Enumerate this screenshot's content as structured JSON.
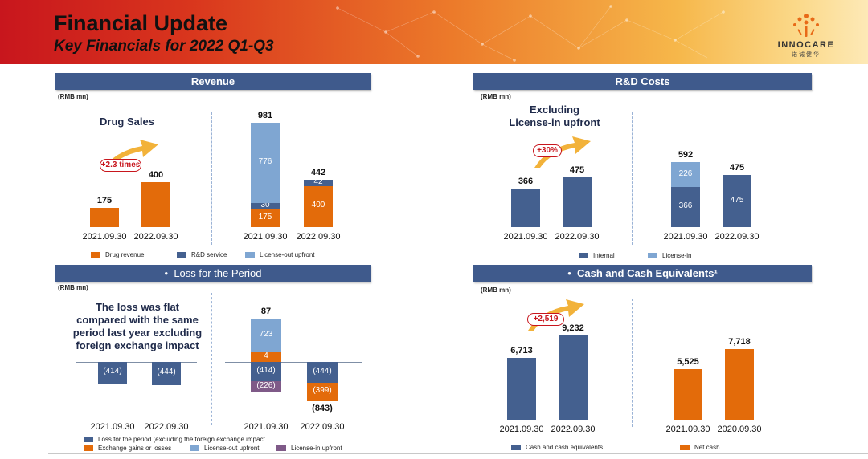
{
  "header": {
    "title": "Financial Update",
    "subtitle": "Key Financials for 2022 Q1-Q3"
  },
  "logo": {
    "word": "INNOCARE",
    "cn": "诺诚健华"
  },
  "colors": {
    "drug_revenue": "#e36b0a",
    "rd_service": "#44608f",
    "license_out": "#7fa6d2",
    "license_in_upfront": "#7f5a88",
    "panel": "#3f5a8c"
  },
  "panels": {
    "revenue": {
      "title": "Revenue",
      "unit": "(RMB mn)",
      "note": "Drug Sales",
      "growth": "+2.3 times"
    },
    "rd": {
      "title": "R&D Costs",
      "unit": "(RMB mn)",
      "note_lines": [
        "Excluding",
        "License-in upfront"
      ],
      "growth": "+30%"
    },
    "loss": {
      "title": "Loss for the Period",
      "unit": "(RMB mn)",
      "note_lines": [
        "The loss was flat",
        "compared with the same",
        "period last year excluding",
        "foreign exchange impact"
      ]
    },
    "cash": {
      "title": "Cash and Cash Equivalents¹",
      "unit": "(RMB mn)",
      "growth": "+2,519"
    }
  },
  "chart_data": [
    {
      "type": "bar",
      "id": "revenue_drug_sales",
      "categories": [
        "2021.09.30",
        "2022.09.30"
      ],
      "series": [
        {
          "name": "Drug revenue",
          "values": [
            175,
            400
          ]
        }
      ],
      "data_labels": [
        "175",
        "400"
      ]
    },
    {
      "type": "bar",
      "id": "revenue_total_stacked",
      "categories": [
        "2021.09.30",
        "2022.09.30"
      ],
      "series": [
        {
          "name": "Drug revenue",
          "values": [
            175,
            400
          ]
        },
        {
          "name": "R&D service",
          "values": [
            30,
            42
          ]
        },
        {
          "name": "License-out upfront",
          "values": [
            776,
            0
          ]
        }
      ],
      "totals": [
        981,
        442
      ],
      "total_labels": [
        "981",
        "442"
      ]
    },
    {
      "type": "bar",
      "id": "rd_internal",
      "categories": [
        "2021.09.30",
        "2022.09.30"
      ],
      "series": [
        {
          "name": "Internal",
          "values": [
            366,
            475
          ]
        }
      ],
      "data_labels": [
        "366",
        "475"
      ]
    },
    {
      "type": "bar",
      "id": "rd_total_stacked",
      "categories": [
        "2021.09.30",
        "2022.09.30"
      ],
      "series": [
        {
          "name": "Internal",
          "values": [
            366,
            475
          ]
        },
        {
          "name": "License-in",
          "values": [
            226,
            0
          ]
        }
      ],
      "totals": [
        592,
        475
      ],
      "total_labels": [
        "592",
        "475"
      ]
    },
    {
      "type": "bar",
      "id": "loss_excluding_fx",
      "categories": [
        "2021.09.30",
        "2022.09.30"
      ],
      "series": [
        {
          "name": "Loss for the period (excluding the foreign exchange impact",
          "values": [
            -414,
            -444
          ]
        }
      ],
      "data_labels": [
        "(414)",
        "(444)"
      ]
    },
    {
      "type": "bar",
      "id": "loss_stacked",
      "categories": [
        "2021.09.30",
        "2022.09.30"
      ],
      "series": [
        {
          "name": "Loss for the period (excluding the foreign exchange impact",
          "values": [
            -414,
            -444
          ]
        },
        {
          "name": "Exchange gains or losses",
          "values": [
            4,
            -399
          ]
        },
        {
          "name": "License-out upfront",
          "values": [
            723,
            0
          ]
        },
        {
          "name": "License-in upfront",
          "values": [
            -226,
            0
          ]
        }
      ],
      "totals": [
        87,
        -843
      ],
      "total_labels": [
        "87",
        "(843)"
      ],
      "segment_labels": {
        "s0": [
          "(414)",
          "(444)"
        ],
        "s1": [
          "4",
          "(399)"
        ],
        "s2": [
          "723",
          ""
        ],
        "s3": [
          "(226)",
          ""
        ]
      }
    },
    {
      "type": "bar",
      "id": "cash_equivalents",
      "categories": [
        "2021.09.30",
        "2022.09.30"
      ],
      "series": [
        {
          "name": "Cash and cash equivalents",
          "values": [
            6713,
            9232
          ]
        }
      ],
      "data_labels": [
        "6,713",
        "9,232"
      ]
    },
    {
      "type": "bar",
      "id": "net_cash",
      "categories": [
        "2021.09.30",
        "2020.09.30"
      ],
      "series": [
        {
          "name": "Net cash",
          "values": [
            5525,
            7718
          ]
        }
      ],
      "data_labels": [
        "5,525",
        "7,718"
      ]
    }
  ],
  "legends": {
    "revenue": [
      "Drug revenue",
      "R&D service",
      "License-out upfront"
    ],
    "rd": [
      "Internal",
      "License-in"
    ],
    "loss": [
      "Loss for the period (excluding the foreign exchange impact",
      "Exchange gains or losses",
      "License-out upfront",
      "License-in upfront"
    ],
    "cash": [
      "Cash and cash equivalents",
      "Net cash"
    ]
  }
}
